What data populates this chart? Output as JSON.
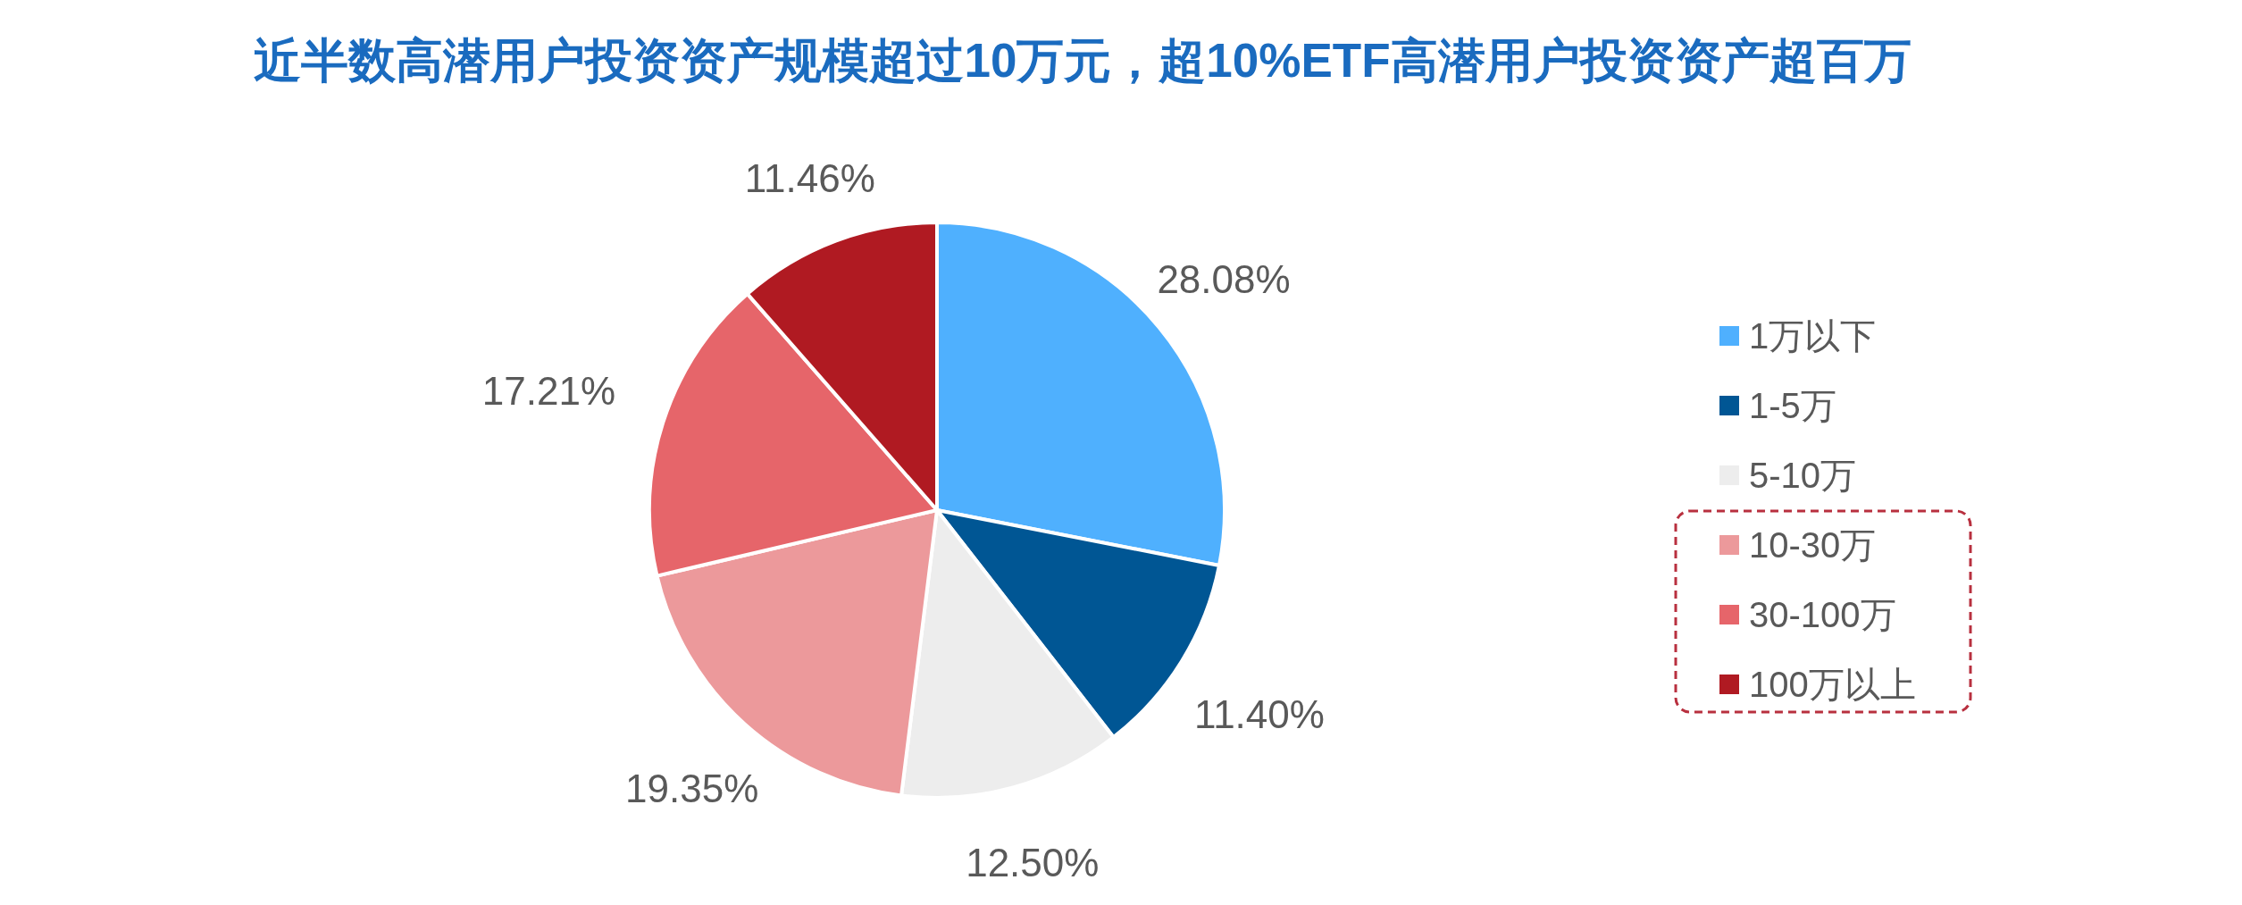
{
  "chart_data": {
    "type": "pie",
    "title": "近半数高潜用户投资资产规模超过10万元，超10%ETF高潜用户投资资产超百万",
    "categories": [
      "1万以下",
      "1-5万",
      "5-10万",
      "10-30万",
      "30-100万",
      "100万以上"
    ],
    "values": [
      28.08,
      11.4,
      12.5,
      19.35,
      17.21,
      11.46
    ],
    "colors": [
      "#4fb0fe",
      "#005694",
      "#ededed",
      "#ec999b",
      "#e6656a",
      "#b01a22"
    ],
    "value_labels": [
      "28.08%",
      "11.40%",
      "12.50%",
      "19.35%",
      "17.21%",
      "11.46%"
    ],
    "legend": "right"
  }
}
